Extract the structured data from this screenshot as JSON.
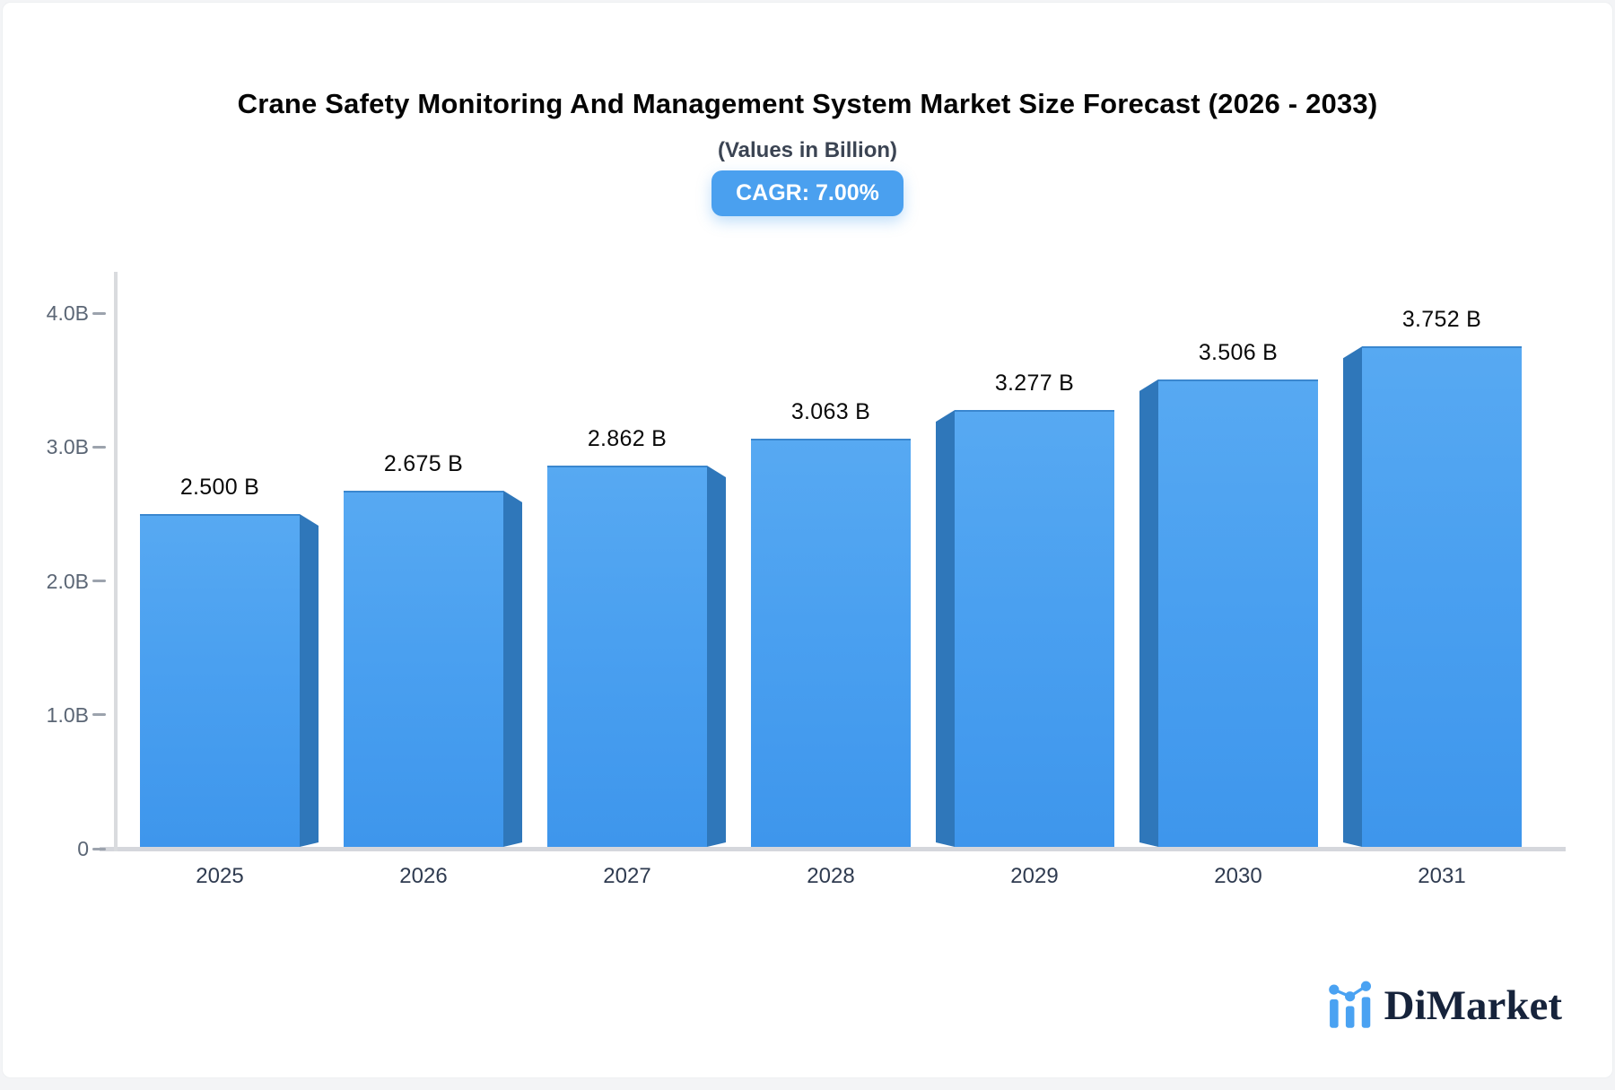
{
  "title": "Crane Safety Monitoring And Management System Market Size Forecast (2026 - 2033)",
  "subtitle": "(Values in Billion)",
  "badge_label": "CAGR: 7.00%",
  "brand": {
    "name": "DiMarket"
  },
  "colors": {
    "bar_top": "#57a9f2",
    "bar_bottom": "#3e96ec",
    "bar_side": "#2f77ba",
    "badge_bg": "#4aa0ef",
    "axis_line": "#d7d9dd",
    "ytick_text": "#5b6675",
    "xtick_text": "#2f3b50",
    "logo_blue": "#4aa2f2",
    "logo_navy": "#16233b"
  },
  "chart_data": {
    "type": "bar",
    "title": "Crane Safety Monitoring And Management System Market Size Forecast (2026 - 2033)",
    "subtitle": "(Values in Billion)",
    "annotation": "CAGR: 7.00%",
    "categories": [
      "2025",
      "2026",
      "2027",
      "2028",
      "2029",
      "2030",
      "2031"
    ],
    "values": [
      2.5,
      2.675,
      2.862,
      3.063,
      3.277,
      3.506,
      3.752
    ],
    "value_labels": [
      "2.500 B",
      "2.675 B",
      "2.862 B",
      "3.063 B",
      "3.277 B",
      "3.506 B",
      "3.752 B"
    ],
    "xlabel": "",
    "ylabel": "",
    "ylim": [
      0,
      4.0
    ],
    "ytick_values": [
      0,
      1.0,
      2.0,
      3.0,
      4.0
    ],
    "ytick_labels": [
      "0",
      "1.0B",
      "2.0B",
      "3.0B",
      "4.0B"
    ],
    "grid": false,
    "legend_position": "none",
    "style": "3d-extruded-bars, side face toward chart center"
  }
}
